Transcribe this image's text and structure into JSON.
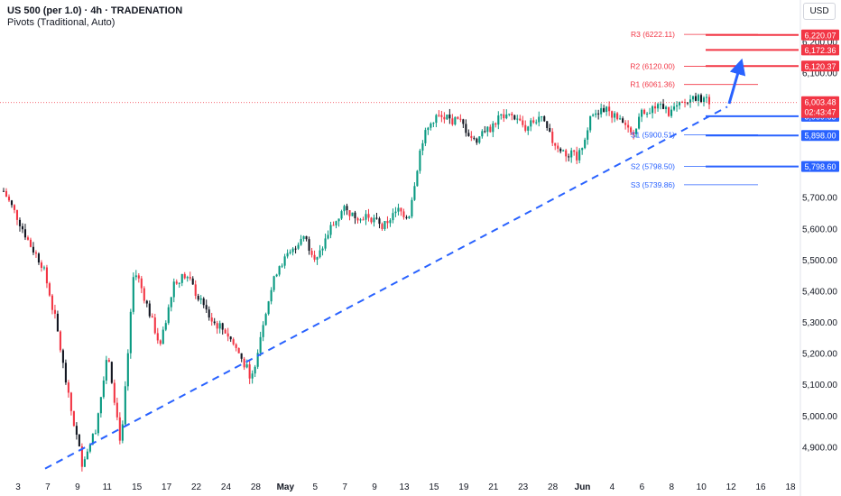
{
  "header": {
    "title": "US 500 (per 1.0) · 4h · TRADENATION",
    "indicator": "Pivots (Traditional, Auto)"
  },
  "currency_button": "USD",
  "colors": {
    "bull": "#089981",
    "bear": "#f23645",
    "bear_dark": "#131722",
    "pivot_red": "#f23645",
    "support_blue": "#2962ff",
    "trendline": "#2962ff",
    "axis_text": "#131722"
  },
  "chart_data": {
    "type": "candlestick",
    "instrument": "US 500 (per 1.0)",
    "timeframe": "4h",
    "ylim": [
      4800,
      6260
    ],
    "price_ticks": [
      4900,
      5000,
      5100,
      5200,
      5300,
      5400,
      5500,
      5600,
      5700,
      6100,
      6200
    ],
    "price_tick_labels": [
      "4,900.00",
      "5,000.00",
      "5,100.00",
      "5,200.00",
      "5,300.00",
      "5,400.00",
      "5,500.00",
      "5,600.00",
      "5,700.00",
      "6,100.00",
      "6,200.00"
    ],
    "date_labels": [
      {
        "label": "3",
        "bold": false
      },
      {
        "label": "7",
        "bold": false
      },
      {
        "label": "9",
        "bold": false
      },
      {
        "label": "11",
        "bold": false
      },
      {
        "label": "15",
        "bold": false
      },
      {
        "label": "17",
        "bold": false
      },
      {
        "label": "22",
        "bold": false
      },
      {
        "label": "24",
        "bold": false
      },
      {
        "label": "28",
        "bold": false
      },
      {
        "label": "May",
        "bold": true
      },
      {
        "label": "5",
        "bold": false
      },
      {
        "label": "7",
        "bold": false
      },
      {
        "label": "9",
        "bold": false
      },
      {
        "label": "13",
        "bold": false
      },
      {
        "label": "15",
        "bold": false
      },
      {
        "label": "19",
        "bold": false
      },
      {
        "label": "21",
        "bold": false
      },
      {
        "label": "23",
        "bold": false
      },
      {
        "label": "28",
        "bold": false
      },
      {
        "label": "Jun",
        "bold": true
      },
      {
        "label": "4",
        "bold": false
      },
      {
        "label": "6",
        "bold": false
      },
      {
        "label": "8",
        "bold": false
      },
      {
        "label": "10",
        "bold": false
      },
      {
        "label": "12",
        "bold": false
      },
      {
        "label": "16",
        "bold": false
      },
      {
        "label": "18",
        "bold": false
      }
    ],
    "price_path": [
      5720,
      5640,
      5550,
      5480,
      5300,
      5050,
      4850,
      4950,
      5200,
      4900,
      5480,
      5350,
      5220,
      5430,
      5450,
      5370,
      5300,
      5270,
      5200,
      5120,
      5330,
      5480,
      5520,
      5570,
      5500,
      5600,
      5660,
      5640,
      5640,
      5600,
      5660,
      5640,
      5880,
      5960,
      5950,
      5940,
      5880,
      5910,
      5960,
      5960,
      5920,
      5960,
      5880,
      5840,
      5830,
      5960,
      5990,
      5950,
      5900,
      5980,
      5990,
      5970,
      6000,
      6020,
      6010
    ],
    "last_price": "6,003.48",
    "countdown": "02:43:47",
    "pivots": [
      {
        "name": "R3",
        "label": "R3 (6222.11)",
        "value": 6222.11,
        "tag": "6,220.07"
      },
      {
        "name": "R2",
        "label": "R2 (6120.00)",
        "value": 6120.0,
        "tag": "6,120.37"
      },
      {
        "name": "R1",
        "label": "R1 (6061.36)",
        "value": 6061.36,
        "tag": ""
      },
      {
        "name": "S1",
        "label": "S1 (5900.51)",
        "value": 5900.51,
        "tag": "5,898.00"
      },
      {
        "name": "S2",
        "label": "S2 (5798.50)",
        "value": 5798.5,
        "tag": "5,798.60"
      },
      {
        "name": "S3",
        "label": "S3 (5739.86)",
        "value": 5739.86,
        "tag": ""
      }
    ],
    "horizontal_levels": [
      {
        "value": 6220.07,
        "color": "red",
        "tag": "6,220.07"
      },
      {
        "value": 6172.36,
        "color": "red",
        "tag": "6,172.36"
      },
      {
        "value": 6120.37,
        "color": "red",
        "tag": "6,120.37"
      },
      {
        "value": 5959.63,
        "color": "blue",
        "tag": "5,959.63"
      },
      {
        "value": 5898.0,
        "color": "blue",
        "tag": "5,898.00"
      },
      {
        "value": 5798.6,
        "color": "blue",
        "tag": "5,798.60"
      }
    ],
    "trendline": {
      "from": 4830,
      "to": 5990,
      "style": "dashed"
    },
    "projection_arrow": {
      "from": 6000,
      "to": 6120
    }
  }
}
